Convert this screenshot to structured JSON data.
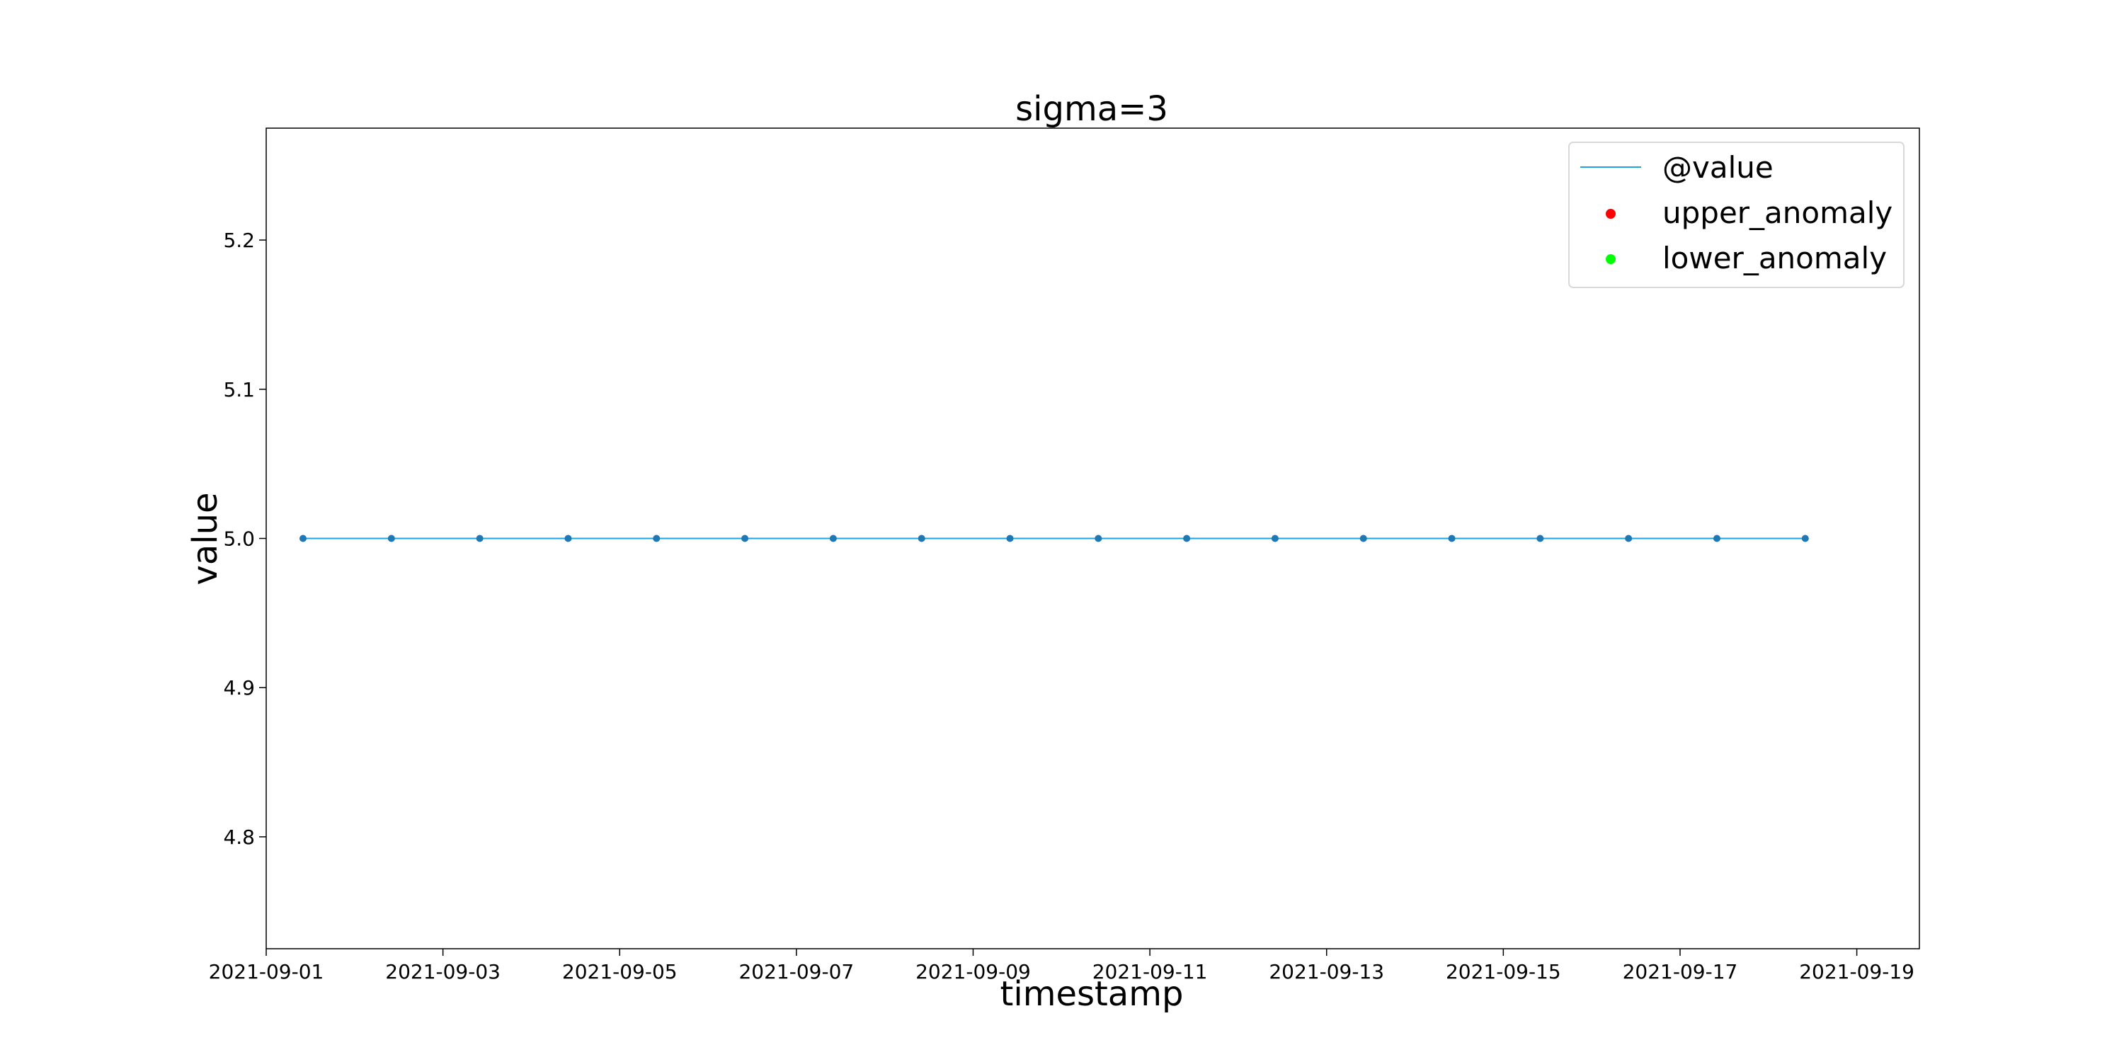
{
  "chart_data": {
    "type": "line",
    "title": "sigma=3",
    "xlabel": "timestamp",
    "ylabel": "value",
    "x": [
      "2021-09-01 10:00",
      "2021-09-02 10:00",
      "2021-09-03 10:00",
      "2021-09-04 10:00",
      "2021-09-05 10:00",
      "2021-09-06 10:00",
      "2021-09-07 10:00",
      "2021-09-08 10:00",
      "2021-09-09 10:00",
      "2021-09-10 10:00",
      "2021-09-11 10:00",
      "2021-09-12 10:00",
      "2021-09-13 10:00",
      "2021-09-14 10:00",
      "2021-09-15 10:00",
      "2021-09-16 10:00",
      "2021-09-17 10:00",
      "2021-09-18 10:00"
    ],
    "xlim": [
      "2021-09-01 00:00",
      "2021-09-19 17:00"
    ],
    "ylim": [
      4.725,
      5.275
    ],
    "xticks": [
      "2021-09-01",
      "2021-09-03",
      "2021-09-05",
      "2021-09-07",
      "2021-09-09",
      "2021-09-11",
      "2021-09-13",
      "2021-09-15",
      "2021-09-17",
      "2021-09-19"
    ],
    "yticks": [
      "4.8",
      "4.9",
      "5.0",
      "5.1",
      "5.2"
    ],
    "series": [
      {
        "name": "@value",
        "kind": "line",
        "color": "#1CA5E0",
        "marker_color": "#1F77B4",
        "values": [
          5.0,
          5.0,
          5.0,
          5.0,
          5.0,
          5.0,
          5.0,
          5.0,
          5.0,
          5.0,
          5.0,
          5.0,
          5.0,
          5.0,
          5.0,
          5.0,
          5.0,
          5.0
        ]
      },
      {
        "name": "upper_anomaly",
        "kind": "scatter",
        "color": "#FF0000",
        "values": []
      },
      {
        "name": "lower_anomaly",
        "kind": "scatter",
        "color": "#00FF00",
        "values": []
      }
    ],
    "grid": false,
    "legend_position": "top-right"
  }
}
